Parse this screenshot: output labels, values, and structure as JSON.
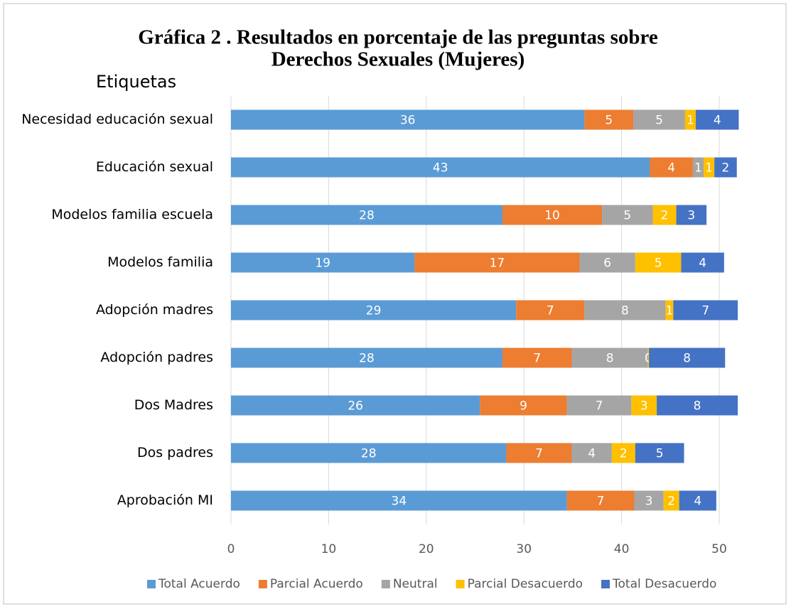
{
  "chart_data": {
    "type": "stacked_bar_horizontal",
    "title": "Gráfica 2 . Resultados en porcentaje de las preguntas sobre",
    "subtitle": "Derechos Sexuales (Mujeres)",
    "y_label": "Etiquetas",
    "categories": [
      "Necesidad educación sexual",
      "Educación sexual",
      "Modelos familia escuela",
      "Modelos familia",
      "Adopción madres",
      "Adopción padres",
      "Dos Madres",
      "Dos padres",
      "Aprobación MI"
    ],
    "series": [
      {
        "name": "Total Acuerdo",
        "color": "#5b9bd5",
        "values": [
          36.2,
          42.9,
          27.8,
          18.8,
          29.2,
          27.8,
          25.5,
          28.2,
          34.4
        ],
        "value_labels": [
          "36",
          "43",
          "28",
          "19",
          "29",
          "28",
          "26",
          "28",
          "34"
        ]
      },
      {
        "name": "Parcial Acuerdo",
        "color": "#ed7d31",
        "values": [
          5.0,
          4.4,
          10.2,
          16.9,
          7.0,
          7.1,
          8.9,
          6.7,
          6.9
        ],
        "value_labels": [
          "5",
          "4",
          "10",
          "17",
          "7",
          "7",
          "9",
          "7",
          "7"
        ]
      },
      {
        "name": "Neutral",
        "color": "#a5a5a5",
        "values": [
          5.3,
          1.1,
          5.2,
          5.7,
          8.3,
          7.8,
          6.6,
          4.1,
          3.0
        ],
        "value_labels": [
          "5",
          "1",
          "5",
          "6",
          "8",
          "8",
          "7",
          "4",
          "3"
        ]
      },
      {
        "name": "Parcial Desacuerdo",
        "color": "#ffc000",
        "values": [
          1.1,
          1.1,
          2.4,
          4.7,
          0.8,
          0.1,
          2.6,
          2.4,
          1.6
        ],
        "value_labels": [
          "1",
          "1",
          "2",
          "5",
          "1",
          "0",
          "3",
          "2",
          "2"
        ]
      },
      {
        "name": "Total Desacuerdo",
        "color": "#4472c4",
        "values": [
          4.4,
          2.3,
          3.1,
          4.4,
          6.6,
          7.8,
          8.3,
          5.0,
          3.8
        ],
        "value_labels": [
          "4",
          "2",
          "3",
          "4",
          "7",
          "8",
          "8",
          "5",
          "4"
        ]
      }
    ],
    "xlim": [
      0,
      52.4
    ],
    "xticks": [
      0,
      10,
      20,
      30,
      40,
      50
    ],
    "grid": true,
    "legend": "bottom"
  }
}
